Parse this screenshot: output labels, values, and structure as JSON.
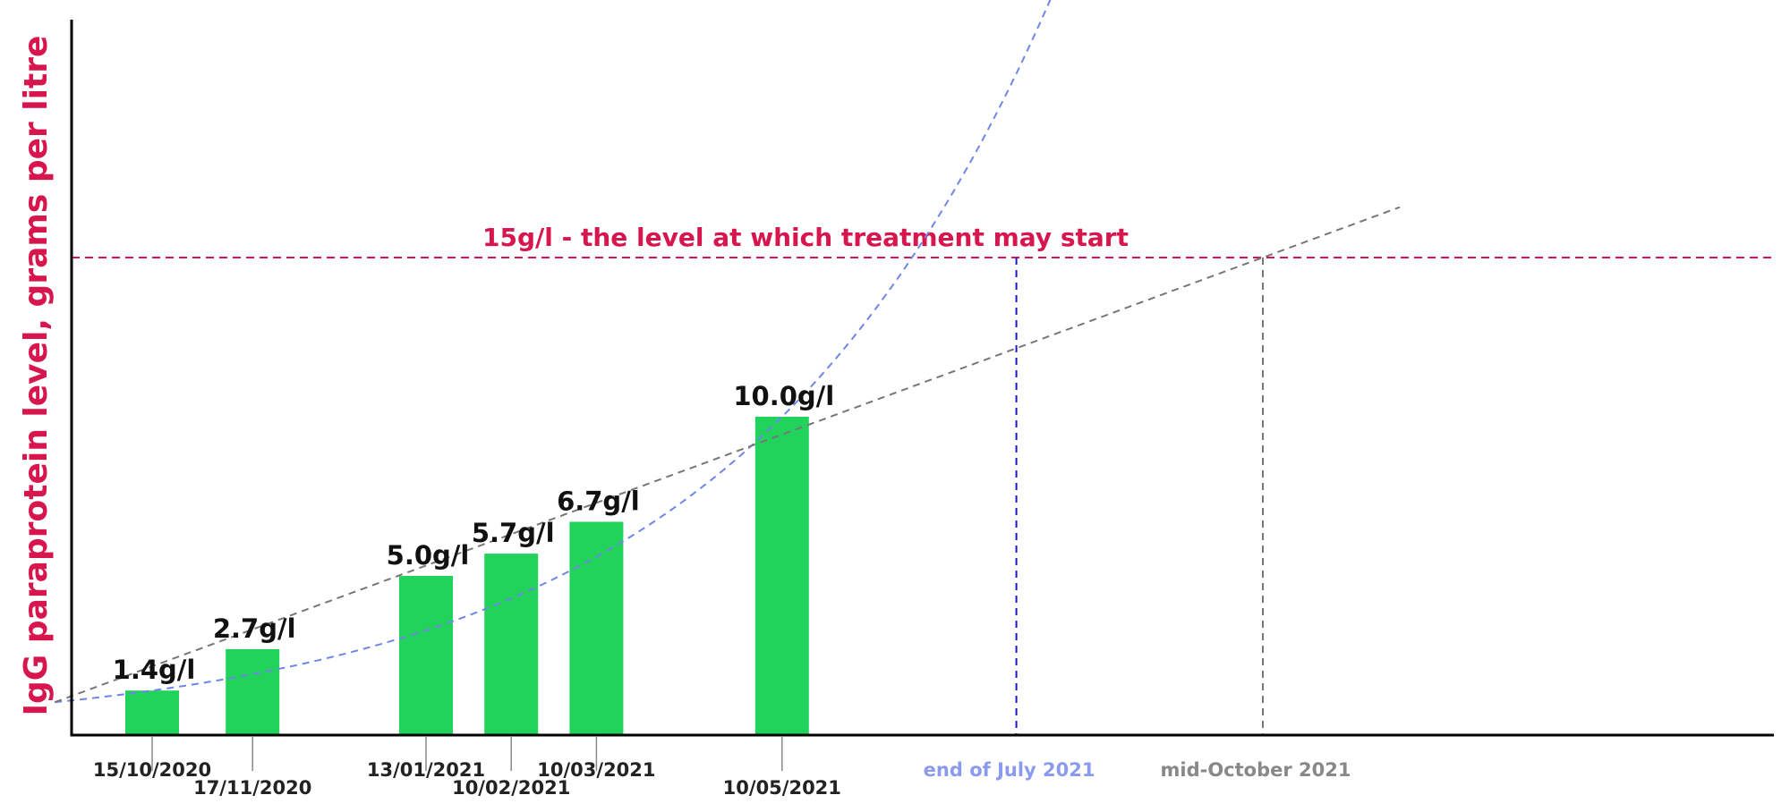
{
  "chart_data": {
    "type": "bar",
    "ylabel": "IgG paraprotein level, grams per litre",
    "ylim": [
      0,
      22.5
    ],
    "grid": false,
    "legend": "none",
    "colors": {
      "bar": "#22d35b",
      "threshold": "#d8164e",
      "exp_projection": "#6f86e8",
      "lin_projection": "#777777",
      "exp_drop": "#1a1acc",
      "lin_drop": "#777777",
      "ylabel": "#d8164e",
      "exp_label": "#8a9bef",
      "lin_label": "#888888",
      "axis": "#000000"
    },
    "bars": [
      {
        "date": "15/10/2020",
        "x": 0,
        "value": 1.4,
        "label": "1.4g/l"
      },
      {
        "date": "17/11/2020",
        "x": 33,
        "value": 2.7,
        "label": "2.7g/l"
      },
      {
        "date": "13/01/2021",
        "x": 90,
        "value": 5.0,
        "label": "5.0g/l"
      },
      {
        "date": "10/02/2021",
        "x": 118,
        "value": 5.7,
        "label": "5.7g/l"
      },
      {
        "date": "10/03/2021",
        "x": 146,
        "value": 6.7,
        "label": "6.7g/l"
      },
      {
        "date": "10/05/2021",
        "x": 207,
        "value": 10.0,
        "label": "10.0g/l"
      }
    ],
    "threshold": {
      "value": 15,
      "label": "15g/l - the level at which treatment may start"
    },
    "projections": [
      {
        "kind": "exponential",
        "reaches_threshold": "end of July 2021",
        "x": 284
      },
      {
        "kind": "linear",
        "reaches_threshold": "mid-October 2021",
        "x": 365
      }
    ]
  }
}
